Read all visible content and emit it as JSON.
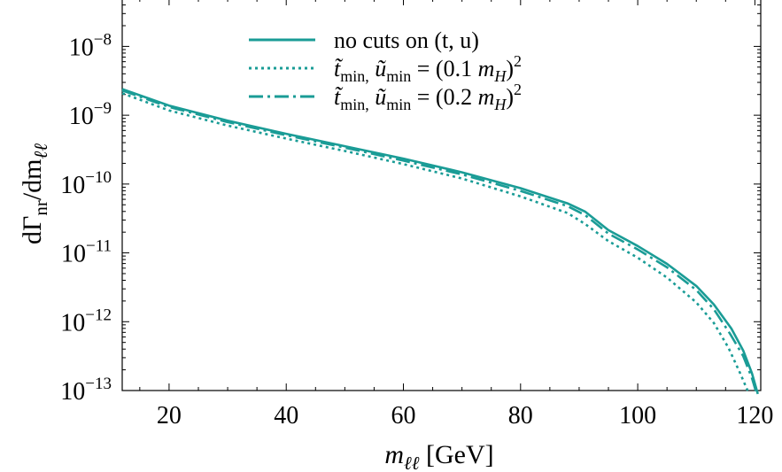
{
  "chart_data": {
    "type": "line",
    "title": "",
    "xlabel": "m_{ℓℓ} [GeV]",
    "ylabel": "dΓ_nr/dm_ℓℓ",
    "xlim": [
      12,
      121
    ],
    "ylim_log10": [
      -13,
      -7.3
    ],
    "yscale": "log",
    "grid": false,
    "legend_position": "top-center",
    "x_ticks": [
      {
        "value": 20,
        "label": "20"
      },
      {
        "value": 40,
        "label": "40"
      },
      {
        "value": 60,
        "label": "60"
      },
      {
        "value": 80,
        "label": "80"
      },
      {
        "value": 100,
        "label": "100"
      },
      {
        "value": 120,
        "label": "120"
      }
    ],
    "y_ticks": [
      {
        "value": -13,
        "label": "10",
        "exp": "−13"
      },
      {
        "value": -12,
        "label": "10",
        "exp": "−12"
      },
      {
        "value": -11,
        "label": "10",
        "exp": "−11"
      },
      {
        "value": -10,
        "label": "10",
        "exp": "−10"
      },
      {
        "value": -9,
        "label": "10",
        "exp": "−9"
      },
      {
        "value": -8,
        "label": "10",
        "exp": "−8"
      }
    ],
    "series": [
      {
        "name": "no cuts on (t, u)",
        "style": "solid",
        "color": "#1a9c96",
        "x": [
          12,
          20,
          30,
          40,
          50,
          60,
          70,
          80,
          88,
          91,
          95,
          100,
          105,
          110,
          113,
          116,
          118,
          119.5,
          120.5
        ],
        "log10_y": [
          -8.62,
          -8.86,
          -9.08,
          -9.27,
          -9.45,
          -9.63,
          -9.83,
          -10.06,
          -10.28,
          -10.4,
          -10.67,
          -10.9,
          -11.16,
          -11.48,
          -11.75,
          -12.1,
          -12.42,
          -12.75,
          -13.05
        ]
      },
      {
        "name": "t̃_min, ũ_min = (0.1 m_H)^2",
        "style": "dotted",
        "color": "#1a9c96",
        "x": [
          12,
          20,
          30,
          40,
          50,
          60,
          70,
          80,
          88,
          91,
          95,
          100,
          105,
          110,
          113,
          115.5,
          117.5,
          119
        ],
        "log10_y": [
          -8.68,
          -8.93,
          -9.15,
          -9.34,
          -9.52,
          -9.71,
          -9.92,
          -10.18,
          -10.42,
          -10.58,
          -10.83,
          -11.07,
          -11.36,
          -11.72,
          -12.02,
          -12.38,
          -12.75,
          -13.05
        ]
      },
      {
        "name": "t̃_min, ũ_min = (0.2 m_H)^2",
        "style": "dashdot",
        "color": "#1a9c96",
        "x": [
          12,
          20,
          30,
          40,
          50,
          60,
          70,
          80,
          88,
          91,
          95,
          100,
          105,
          110,
          113,
          115.8,
          118,
          119.5,
          120.3
        ],
        "log10_y": [
          -8.64,
          -8.88,
          -9.1,
          -9.29,
          -9.47,
          -9.66,
          -9.86,
          -10.1,
          -10.32,
          -10.45,
          -10.72,
          -10.95,
          -11.21,
          -11.54,
          -11.82,
          -12.18,
          -12.5,
          -12.82,
          -13.05
        ]
      }
    ]
  }
}
